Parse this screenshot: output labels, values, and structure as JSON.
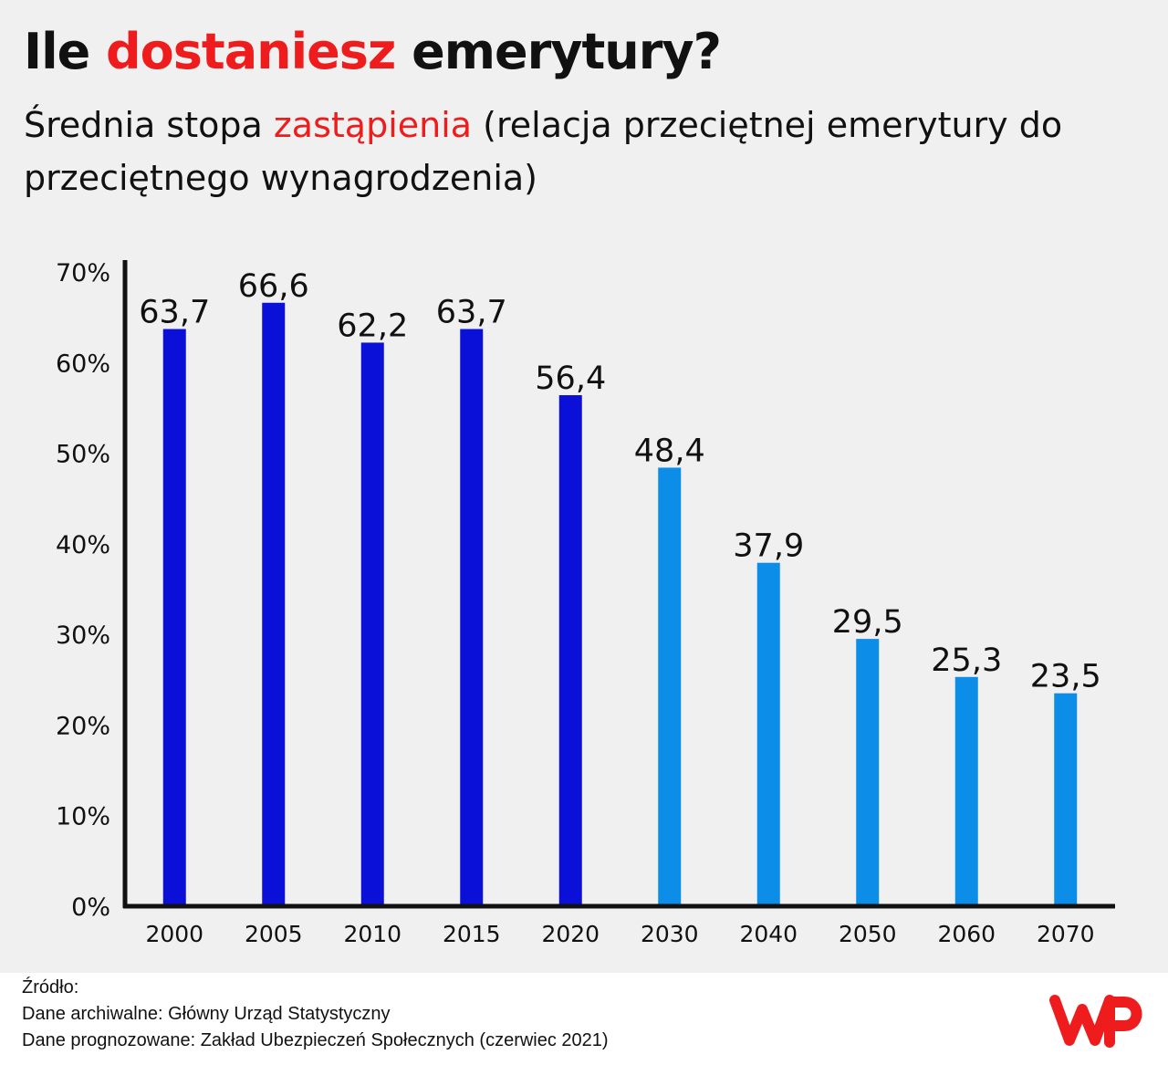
{
  "header": {
    "title_pre": "Ile ",
    "title_accent": "dostaniesz",
    "title_post": " emerytury?",
    "subtitle_pre": "Średnia stopa ",
    "subtitle_accent": "zastąpienia",
    "subtitle_post": " (relacja przeciętnej emerytury do przeciętnego wynagrodzenia)"
  },
  "chart_data": {
    "type": "bar",
    "categories": [
      "2000",
      "2005",
      "2010",
      "2015",
      "2020",
      "2030",
      "2040",
      "2050",
      "2060",
      "2070"
    ],
    "values": [
      63.7,
      66.6,
      62.2,
      63.7,
      56.4,
      48.4,
      37.9,
      29.5,
      25.3,
      23.5
    ],
    "value_labels": [
      "63,7",
      "66,6",
      "62,2",
      "63,7",
      "56,4",
      "48,4",
      "37,9",
      "29,5",
      "25,3",
      "23,5"
    ],
    "series_kind": [
      "archival",
      "archival",
      "archival",
      "archival",
      "archival",
      "forecast",
      "forecast",
      "forecast",
      "forecast",
      "forecast"
    ],
    "colors": {
      "archival": "#0a10d8",
      "forecast": "#0b8de8",
      "accent": "#ee1c1c",
      "axis": "#111111"
    },
    "yticks": [
      "0%",
      "10%",
      "20%",
      "30%",
      "40%",
      "50%",
      "60%",
      "70%"
    ],
    "ylim": [
      0,
      70
    ],
    "grid": false,
    "legend": "none"
  },
  "footer": {
    "source_label": "Źródło:",
    "archival_line": "Dane archiwalne: Główny Urząd Statystyczny",
    "forecast_line": "Dane prognozowane: Zakład Ubezpieczeń Społecznych (czerwiec 2021)",
    "logo_icon": "wp-logo-icon"
  }
}
